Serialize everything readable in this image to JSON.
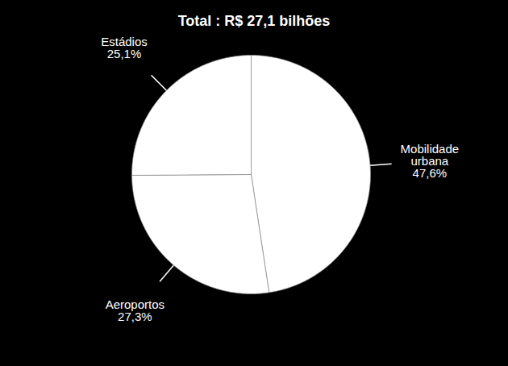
{
  "chart_data": {
    "type": "pie",
    "title": "Total : R$ 27,1 bilhões",
    "categories": [
      "Mobilidade urbana",
      "Aeroportos",
      "Estádios"
    ],
    "values": [
      47.6,
      27.3,
      25.1
    ],
    "value_labels": [
      "47,6%",
      "27,3%",
      "25,1%"
    ],
    "colors": [
      "#ffffff",
      "#ffffff",
      "#ffffff"
    ],
    "data_labels": true
  }
}
